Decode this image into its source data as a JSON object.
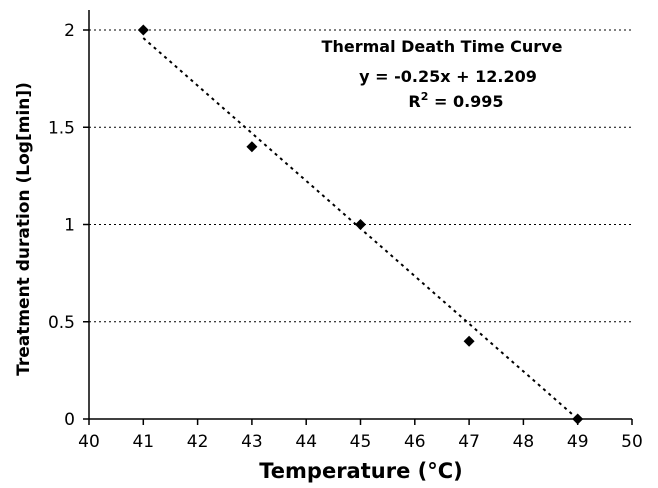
{
  "chart_data": {
    "type": "scatter",
    "title": "Thermal Death Time Curve",
    "xlabel": "Temperature (°C)",
    "ylabel": "Treatment duration (Log[min])",
    "xlim": [
      40,
      50
    ],
    "ylim": [
      0,
      2
    ],
    "x_ticks": [
      "40",
      "41",
      "42",
      "43",
      "44",
      "45",
      "46",
      "47",
      "48",
      "49",
      "50"
    ],
    "y_ticks": [
      "0",
      "0.5",
      "1",
      "1.5",
      "2"
    ],
    "grid": "horizontal dotted",
    "series": [
      {
        "x": [
          41,
          43,
          45,
          47,
          49
        ],
        "y": [
          2.0,
          1.4,
          1.0,
          0.4,
          0.0
        ],
        "marker": "diamond",
        "color": "#000000"
      }
    ],
    "trendline": {
      "slope": -0.25,
      "intercept": 12.209,
      "style": "dotted",
      "color": "#000000"
    },
    "annotations": {
      "equation": "y = -0.25x + 12.209",
      "r2_prefix": "R",
      "r2_exponent": "2",
      "r2_value": " = 0.995"
    }
  }
}
